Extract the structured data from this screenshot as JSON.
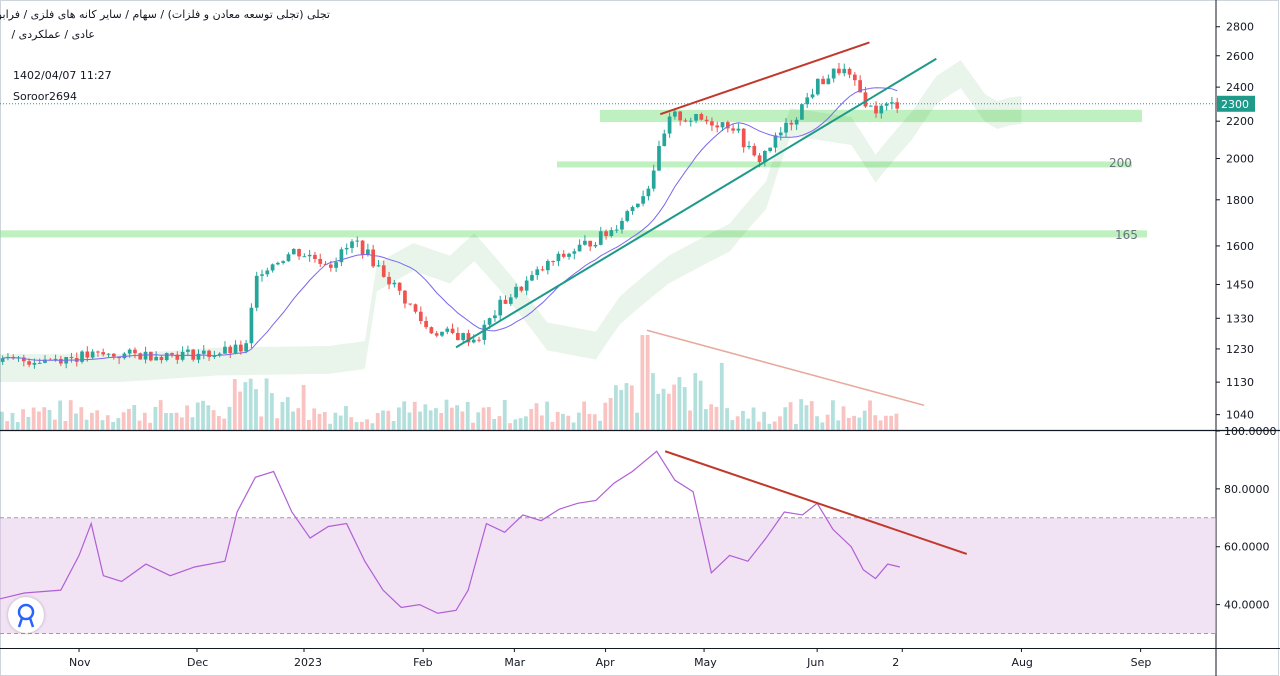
{
  "header": {
    "title": "تجلی (تجلی توسعه معادن و فلزات) / سهام / سایر کانه های فلزی / فرابورس",
    "subtitle": "عادی / عملکردی /",
    "date": "1402/04/07 11:27",
    "author": "Soroor2694"
  },
  "colors": {
    "up": "#26a69a",
    "down": "#ef5350",
    "trendline_green": "#1e9a8a",
    "trendline_red": "#c0392b",
    "zone": "#8be38b",
    "ma": "#7b68ee",
    "rsi": "#b05fd6",
    "price_tag": "#1e9a8a"
  },
  "chart_data": [
    {
      "type": "candlestick",
      "panel": "price",
      "scale": "log",
      "ylim": [
        1000,
        2900
      ],
      "y_ticks": [
        "2800",
        "2600",
        "2400",
        "2200",
        "2000",
        "1800",
        "1600",
        "1450",
        "1330",
        "1230",
        "1130",
        "1040"
      ],
      "x_ticks": [
        "Nov",
        "Dec",
        "2023",
        "Feb",
        "Mar",
        "Apr",
        "May",
        "Jun",
        "2",
        "Aug",
        "Sep"
      ],
      "last_price": "2300",
      "zone_labels": [
        "200",
        "165"
      ],
      "zones": [
        {
          "from": 2195,
          "to": 2265
        },
        {
          "from": 1955,
          "to": 1985
        },
        {
          "from": 1635,
          "to": 1665
        }
      ],
      "anchors": [
        {
          "month": "Oct",
          "x_frac": 0.0,
          "price": 1190
        },
        {
          "month": "Nov",
          "x_frac": 0.08,
          "price": 1210
        },
        {
          "month": "Dec",
          "x_frac": 0.17,
          "price": 1215
        },
        {
          "month": "Dec",
          "x_frac": 0.2,
          "price": 1230
        },
        {
          "month": "Dec",
          "x_frac": 0.21,
          "price": 1500
        },
        {
          "month": "2023",
          "x_frac": 0.24,
          "price": 1580
        },
        {
          "month": "2023",
          "x_frac": 0.27,
          "price": 1530
        },
        {
          "month": "2023",
          "x_frac": 0.29,
          "price": 1620
        },
        {
          "month": "2023",
          "x_frac": 0.31,
          "price": 1510
        },
        {
          "month": "Feb",
          "x_frac": 0.35,
          "price": 1290
        },
        {
          "month": "Feb",
          "x_frac": 0.39,
          "price": 1260
        },
        {
          "month": "Feb",
          "x_frac": 0.41,
          "price": 1380
        },
        {
          "month": "Mar",
          "x_frac": 0.45,
          "price": 1530
        },
        {
          "month": "Apr",
          "x_frac": 0.5,
          "price": 1660
        },
        {
          "month": "Apr",
          "x_frac": 0.53,
          "price": 1850
        },
        {
          "month": "Apr",
          "x_frac": 0.55,
          "price": 2230
        },
        {
          "month": "May",
          "x_frac": 0.6,
          "price": 2180
        },
        {
          "month": "May",
          "x_frac": 0.62,
          "price": 1980
        },
        {
          "month": "May",
          "x_frac": 0.65,
          "price": 2210
        },
        {
          "month": "Jun",
          "x_frac": 0.67,
          "price": 2420
        },
        {
          "month": "Jun",
          "x_frac": 0.69,
          "price": 2520
        },
        {
          "month": "Jun",
          "x_frac": 0.715,
          "price": 2260
        },
        {
          "month": "Jun",
          "x_frac": 0.735,
          "price": 2300
        }
      ],
      "indicators": [
        "moving average",
        "ichimoku cloud",
        "volume"
      ],
      "annotations": [
        "rising support trendline",
        "rising resistance trendline",
        "falling volume trendline"
      ]
    },
    {
      "type": "line",
      "panel": "oscillator",
      "ylim": [
        25,
        100
      ],
      "y_ticks": [
        "100.0000",
        "80.0000",
        "60.0000",
        "40.0000"
      ],
      "bands": [
        30,
        70
      ],
      "points": [
        [
          0.0,
          42
        ],
        [
          0.02,
          44
        ],
        [
          0.05,
          45
        ],
        [
          0.065,
          57
        ],
        [
          0.075,
          68
        ],
        [
          0.085,
          50
        ],
        [
          0.1,
          48
        ],
        [
          0.12,
          54
        ],
        [
          0.14,
          50
        ],
        [
          0.16,
          53
        ],
        [
          0.185,
          55
        ],
        [
          0.195,
          72
        ],
        [
          0.21,
          84
        ],
        [
          0.225,
          86
        ],
        [
          0.24,
          72
        ],
        [
          0.255,
          63
        ],
        [
          0.27,
          67
        ],
        [
          0.285,
          68
        ],
        [
          0.3,
          55
        ],
        [
          0.315,
          45
        ],
        [
          0.33,
          39
        ],
        [
          0.345,
          40
        ],
        [
          0.36,
          37
        ],
        [
          0.375,
          38
        ],
        [
          0.385,
          45
        ],
        [
          0.4,
          68
        ],
        [
          0.415,
          65
        ],
        [
          0.43,
          71
        ],
        [
          0.445,
          69
        ],
        [
          0.46,
          73
        ],
        [
          0.475,
          75
        ],
        [
          0.49,
          76
        ],
        [
          0.505,
          82
        ],
        [
          0.52,
          86
        ],
        [
          0.54,
          93
        ],
        [
          0.555,
          83
        ],
        [
          0.57,
          79
        ],
        [
          0.585,
          51
        ],
        [
          0.6,
          57
        ],
        [
          0.615,
          55
        ],
        [
          0.63,
          63
        ],
        [
          0.645,
          72
        ],
        [
          0.66,
          71
        ],
        [
          0.672,
          75
        ],
        [
          0.685,
          66
        ],
        [
          0.7,
          60
        ],
        [
          0.71,
          52
        ],
        [
          0.72,
          49
        ],
        [
          0.73,
          54
        ],
        [
          0.74,
          53
        ]
      ],
      "annotations": [
        "falling resistance trendline"
      ]
    }
  ]
}
